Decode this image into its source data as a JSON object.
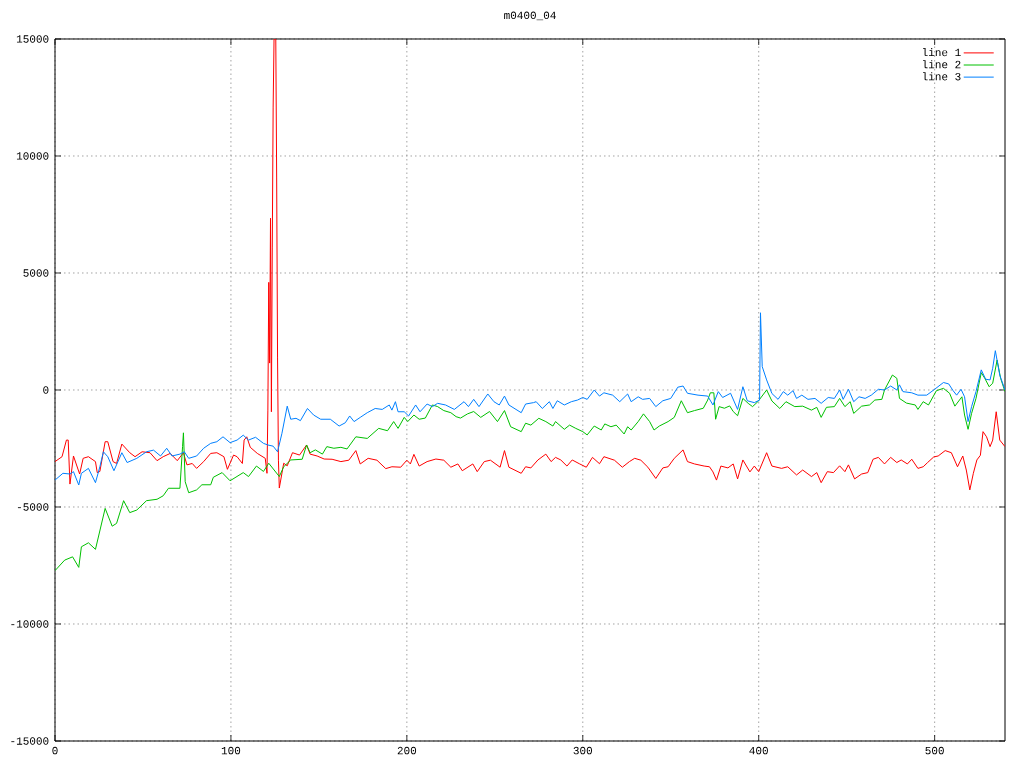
{
  "chart_data": {
    "type": "line",
    "title": "m0400_04",
    "xlim": [
      0,
      540
    ],
    "ylim": [
      -15000,
      15000
    ],
    "xticks": [
      0,
      100,
      200,
      300,
      400,
      500
    ],
    "yticks": [
      -15000,
      -10000,
      -5000,
      0,
      5000,
      10000,
      15000
    ],
    "grid": true,
    "legend": "top right",
    "line_style": "solid",
    "series": [
      {
        "name": "line 1",
        "color": "#ff0000",
        "x": [
          0,
          4,
          6.5,
          7.5,
          8.5,
          10.5,
          14,
          16,
          19,
          23,
          24,
          25.5,
          28.5,
          30,
          33,
          35,
          38,
          42.5,
          45.5,
          49.5,
          54,
          58,
          61.5,
          65.5,
          69.5,
          73,
          75,
          78,
          80.5,
          84.5,
          88.5,
          92,
          96,
          98,
          101.5,
          103.5,
          106.5,
          107.5,
          109,
          111,
          115,
          119.5,
          120.5,
          121,
          121.5,
          122,
          122.5,
          123,
          123.5,
          124,
          124.5,
          125.5,
          126,
          126.5,
          127,
          127.5,
          130,
          132,
          135,
          139,
          143,
          145,
          149,
          153,
          157.5,
          162.5,
          167,
          171,
          173.5,
          178,
          183,
          188,
          191.5,
          196.5,
          200,
          202,
          204,
          207,
          211.5,
          216.5,
          221,
          225,
          229,
          231.5,
          237.5,
          240,
          244,
          247.5,
          253,
          255.5,
          258,
          265,
          267.5,
          270.5,
          274.5,
          279,
          282,
          284.5,
          287.5,
          291,
          294,
          298,
          302,
          305.5,
          309.5,
          312,
          318,
          322.5,
          326.5,
          329.5,
          333,
          337,
          341.5,
          345.5,
          348.5,
          352,
          357,
          359.5,
          363.5,
          369,
          372,
          374,
          376,
          378.5,
          382.5,
          385.5,
          388,
          391,
          395,
          397.5,
          400,
          404.5,
          407.5,
          413,
          416.5,
          421.5,
          425,
          430,
          433,
          435.5,
          439,
          442.5,
          446,
          449,
          451,
          454.5,
          458.5,
          462,
          465,
          468,
          471.5,
          475,
          478.5,
          481,
          484.5,
          487,
          490.5,
          493.5,
          496,
          499.5,
          502,
          506,
          509.5,
          513,
          516,
          518,
          520,
          522,
          524,
          526,
          527.5,
          529.5,
          531.5,
          533,
          535,
          537,
          540
        ],
        "values": [
          -3060,
          -2850,
          -2140,
          -2140,
          -4020,
          -2820,
          -3590,
          -2920,
          -2850,
          -3060,
          -3530,
          -3480,
          -2210,
          -2210,
          -3060,
          -3140,
          -2310,
          -2680,
          -2850,
          -2640,
          -2680,
          -3020,
          -2850,
          -2710,
          -3020,
          -2680,
          -3200,
          -3140,
          -3350,
          -3060,
          -2710,
          -2680,
          -2850,
          -3390,
          -2780,
          -2850,
          -3140,
          -2140,
          -2000,
          -2450,
          -2710,
          -2920,
          -3560,
          -860,
          4600,
          1150,
          7340,
          -930,
          6070,
          12090,
          15000,
          15000,
          9060,
          1370,
          -3000,
          -4190,
          -3130,
          -3240,
          -2680,
          -2780,
          -2350,
          -2740,
          -2820,
          -2950,
          -2960,
          -3060,
          -3000,
          -2590,
          -3160,
          -2920,
          -3000,
          -3360,
          -3280,
          -3300,
          -3000,
          -3160,
          -2750,
          -3250,
          -3060,
          -2950,
          -3000,
          -3300,
          -3160,
          -3450,
          -3160,
          -3490,
          -3060,
          -3000,
          -3300,
          -2590,
          -3300,
          -3560,
          -3280,
          -3330,
          -2990,
          -2740,
          -3060,
          -2880,
          -2990,
          -3250,
          -2990,
          -3150,
          -3300,
          -2880,
          -3150,
          -2850,
          -3000,
          -3300,
          -3060,
          -2920,
          -3000,
          -3300,
          -3780,
          -3330,
          -3280,
          -2920,
          -2560,
          -3060,
          -3160,
          -3250,
          -3280,
          -3500,
          -3850,
          -3250,
          -3330,
          -3160,
          -3800,
          -2990,
          -3500,
          -3250,
          -3490,
          -2680,
          -3250,
          -3350,
          -3280,
          -3630,
          -3420,
          -3700,
          -3530,
          -3960,
          -3490,
          -3530,
          -3240,
          -3490,
          -3200,
          -3800,
          -3590,
          -3530,
          -2960,
          -2880,
          -3160,
          -2880,
          -3100,
          -2990,
          -3160,
          -2960,
          -3350,
          -3280,
          -3100,
          -2860,
          -2820,
          -2590,
          -2680,
          -3280,
          -2820,
          -3420,
          -4270,
          -3560,
          -2990,
          -2790,
          -1780,
          -2000,
          -2420,
          -2140,
          -930,
          -2140,
          -2420
        ]
      },
      {
        "name": "line 2",
        "color": "#00c000",
        "x": [
          0,
          5.5,
          10,
          13.5,
          15,
          19,
          23,
          28.5,
          32.5,
          35,
          39,
          42.5,
          46.5,
          52,
          58,
          61.5,
          64.5,
          71,
          72.5,
          73,
          74,
          76,
          80.5,
          83.5,
          88.5,
          90,
          95,
          99.5,
          107,
          110,
          114.5,
          118.5,
          121.5,
          127.5,
          130,
          134,
          140.5,
          143,
          145,
          148,
          152,
          154.5,
          158.5,
          162.5,
          166,
          171,
          177.5,
          184,
          189,
          192.5,
          195,
          198.5,
          200.5,
          204,
          207,
          210.5,
          214.5,
          217.5,
          221,
          225,
          228,
          230.5,
          234.5,
          238,
          242,
          247,
          251.5,
          255.5,
          259,
          265,
          267.5,
          270.5,
          275,
          279,
          283,
          284.5,
          289.5,
          292.5,
          296,
          300,
          302.5,
          306.5,
          310.5,
          312.5,
          316,
          319,
          323.5,
          325.5,
          327.5,
          331.5,
          334.5,
          338,
          340.5,
          343.5,
          348.5,
          352,
          356,
          359.5,
          363.5,
          368.5,
          371,
          372.5,
          374.5,
          375.5,
          377.5,
          380.5,
          383.5,
          385.5,
          388,
          391,
          394,
          396.5,
          399.5,
          404.5,
          407.5,
          412,
          415.5,
          420.5,
          425,
          430,
          433,
          435.5,
          438.5,
          443,
          446,
          449,
          452,
          454,
          458.5,
          463,
          466,
          470,
          471.5,
          476,
          478.5,
          480,
          484,
          489,
          490.5,
          493.5,
          496.5,
          501,
          505,
          508.5,
          511.5,
          515.5,
          517,
          519,
          521,
          523.5,
          526.5,
          528.5,
          531,
          533,
          535.5,
          537.5,
          540
        ],
        "values": [
          -7720,
          -7270,
          -7130,
          -7580,
          -6700,
          -6530,
          -6810,
          -5060,
          -5820,
          -5700,
          -4730,
          -5240,
          -5130,
          -4730,
          -4670,
          -4520,
          -4200,
          -4200,
          -2420,
          -1830,
          -3920,
          -4390,
          -4270,
          -4050,
          -4050,
          -3730,
          -3530,
          -3880,
          -3530,
          -3700,
          -3250,
          -3480,
          -3130,
          -3700,
          -3280,
          -2990,
          -2960,
          -2350,
          -2680,
          -2560,
          -2740,
          -2420,
          -2490,
          -2450,
          -2520,
          -2000,
          -2070,
          -1640,
          -1740,
          -1350,
          -1640,
          -1170,
          -1350,
          -1070,
          -1250,
          -1200,
          -640,
          -710,
          -880,
          -970,
          -1140,
          -1200,
          -1020,
          -920,
          -1170,
          -920,
          -1350,
          -880,
          -1570,
          -1780,
          -1420,
          -1500,
          -1210,
          -1350,
          -1540,
          -1350,
          -1680,
          -1500,
          -1640,
          -1780,
          -1920,
          -1540,
          -1710,
          -1450,
          -1570,
          -1500,
          -1880,
          -1570,
          -1710,
          -1350,
          -1020,
          -1350,
          -1710,
          -1540,
          -1350,
          -1170,
          -460,
          -970,
          -880,
          -780,
          -430,
          -120,
          -120,
          -1250,
          -710,
          -780,
          -680,
          -920,
          -1100,
          -360,
          -570,
          -710,
          -500,
          0,
          -470,
          -790,
          -500,
          -710,
          -690,
          -860,
          -740,
          -1170,
          -740,
          -710,
          -360,
          -710,
          -500,
          -1000,
          -690,
          -640,
          -430,
          -400,
          0,
          640,
          500,
          -360,
          -560,
          -640,
          -830,
          -500,
          -640,
          -30,
          70,
          -140,
          -690,
          -290,
          -1070,
          -1680,
          -1000,
          -360,
          740,
          500,
          140,
          290,
          1280,
          500,
          -70
        ]
      },
      {
        "name": "line 3",
        "color": "#0080ff",
        "x": [
          0,
          4.5,
          8.5,
          10.5,
          13.5,
          15,
          19,
          23,
          25.5,
          27.5,
          30,
          33.5,
          38,
          41,
          46.5,
          52,
          56,
          60,
          63.5,
          66.5,
          71,
          73.5,
          76,
          80.5,
          84.5,
          88.5,
          92,
          95.5,
          99.5,
          103.5,
          107,
          110,
          114,
          118.5,
          121,
          124,
          126.5,
          129,
          132,
          134,
          137,
          139.5,
          143.5,
          147,
          151,
          156.5,
          161.5,
          165,
          167.5,
          170,
          173.5,
          177.5,
          182,
          186,
          190,
          191.5,
          193.5,
          195,
          198.5,
          201,
          205,
          207.5,
          211.5,
          214.5,
          217.5,
          222,
          227,
          232.5,
          235,
          238,
          241,
          246,
          249.5,
          252.5,
          255.5,
          258,
          265,
          267.5,
          272,
          273.5,
          277,
          281,
          283,
          285.5,
          289.5,
          293.5,
          297,
          300,
          302.5,
          306.5,
          309.5,
          312,
          317,
          321,
          325.5,
          327.5,
          331.5,
          334,
          338,
          341.5,
          345.5,
          350,
          354,
          357,
          359.5,
          365.5,
          371,
          374,
          377,
          379.5,
          384,
          388,
          391,
          393.5,
          397.5,
          400.5,
          401,
          402,
          404.5,
          407.5,
          411,
          414,
          416.5,
          419.5,
          421.5,
          424.5,
          428,
          432,
          435.5,
          439.5,
          443,
          446,
          448,
          451,
          454,
          457,
          460.5,
          464,
          468,
          471.5,
          475,
          478.5,
          480,
          482,
          487,
          490.5,
          495.5,
          500,
          505,
          508,
          510.5,
          512.5,
          515,
          517,
          519,
          521,
          523.5,
          526.5,
          529,
          531.5,
          533,
          534.5,
          537,
          540
        ],
        "values": [
          -3850,
          -3560,
          -3590,
          -3490,
          -4060,
          -3560,
          -3350,
          -3960,
          -3280,
          -2640,
          -2850,
          -3450,
          -2680,
          -3100,
          -2920,
          -2640,
          -2570,
          -2820,
          -2490,
          -2820,
          -2740,
          -2640,
          -2920,
          -2820,
          -2490,
          -2280,
          -2210,
          -2000,
          -2250,
          -2140,
          -1930,
          -2140,
          -2020,
          -2280,
          -2350,
          -2400,
          -2640,
          -1850,
          -690,
          -1250,
          -1210,
          -1310,
          -790,
          -1070,
          -1250,
          -1250,
          -1540,
          -1400,
          -1110,
          -1350,
          -1170,
          -970,
          -790,
          -830,
          -640,
          -860,
          -500,
          -930,
          -930,
          -1110,
          -640,
          -930,
          -600,
          -710,
          -570,
          -640,
          -830,
          -500,
          -710,
          -400,
          -710,
          -170,
          -500,
          -640,
          -260,
          -640,
          -970,
          -600,
          -540,
          -500,
          -790,
          -500,
          -790,
          -460,
          -640,
          -500,
          -430,
          -320,
          -400,
          0,
          -260,
          -120,
          -220,
          -500,
          -170,
          -500,
          -290,
          -400,
          -360,
          -710,
          -460,
          -360,
          120,
          170,
          -140,
          -220,
          -260,
          -640,
          -70,
          -320,
          -140,
          -830,
          140,
          -460,
          -540,
          -430,
          3300,
          1000,
          430,
          -150,
          -400,
          -70,
          -220,
          -30,
          -360,
          -220,
          -400,
          -360,
          -570,
          -320,
          -360,
          0,
          -400,
          30,
          -500,
          -290,
          -360,
          -220,
          30,
          0,
          170,
          0,
          220,
          -70,
          -120,
          -220,
          -220,
          30,
          320,
          260,
          -30,
          -220,
          30,
          -290,
          -1350,
          -710,
          -70,
          860,
          460,
          430,
          930,
          1680,
          640,
          0
        ]
      }
    ]
  }
}
